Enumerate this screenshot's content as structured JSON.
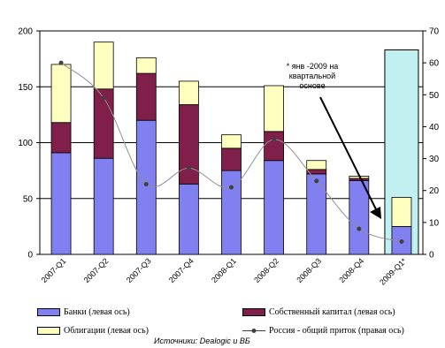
{
  "chart_data": {
    "type": "bar",
    "categories": [
      "2007-Q1",
      "2007-Q2",
      "2007-Q3",
      "2007-Q4",
      "2008-Q1",
      "2008-Q2",
      "2008-Q3",
      "2008-Q4",
      "2009-Q1*"
    ],
    "series": [
      {
        "name": "Банки (левая ось)",
        "axis": "left",
        "stack": "main",
        "color": "#8080f0",
        "values": [
          91,
          86,
          120,
          63,
          75,
          84,
          72,
          66,
          25
        ]
      },
      {
        "name": "Собственный капитал (левая ось)",
        "axis": "left",
        "stack": "main",
        "color": "#80204a",
        "values": [
          27,
          62,
          42,
          71,
          20,
          26,
          4,
          2,
          0
        ]
      },
      {
        "name": "Облигации (левая ось)",
        "axis": "left",
        "stack": "main",
        "color": "#ffffc0",
        "values": [
          52,
          42,
          14,
          21,
          12,
          41,
          8,
          2,
          26
        ]
      },
      {
        "name": "Россия - общий приток (правая ось)",
        "axis": "right",
        "type": "line",
        "color": "#404040",
        "values": [
          60,
          49,
          22,
          27,
          21,
          36,
          23,
          8,
          4
        ]
      }
    ],
    "extra_bar": {
      "category": "2009-Q1*",
      "value": 183,
      "color": "#c0f0f0"
    },
    "yleft": {
      "min": 0,
      "max": 200,
      "ticks": [
        0,
        50,
        100,
        150,
        200
      ]
    },
    "yright": {
      "min": 0,
      "max": 70,
      "ticks": [
        0,
        10,
        20,
        30,
        40,
        50,
        60,
        70
      ]
    },
    "annotation": {
      "lines": [
        "* янв -2009 на",
        "квартальной",
        "основе"
      ]
    },
    "grid": true
  },
  "labels": {
    "legend_banks": "Банки (левая ось)",
    "legend_equity": "Собственный капитал (левая ось)",
    "legend_bonds": "Облигации (левая ось)",
    "legend_russia": "Россия - общий приток (правая ось)",
    "source": "Источники: Dealogic и ВБ"
  }
}
